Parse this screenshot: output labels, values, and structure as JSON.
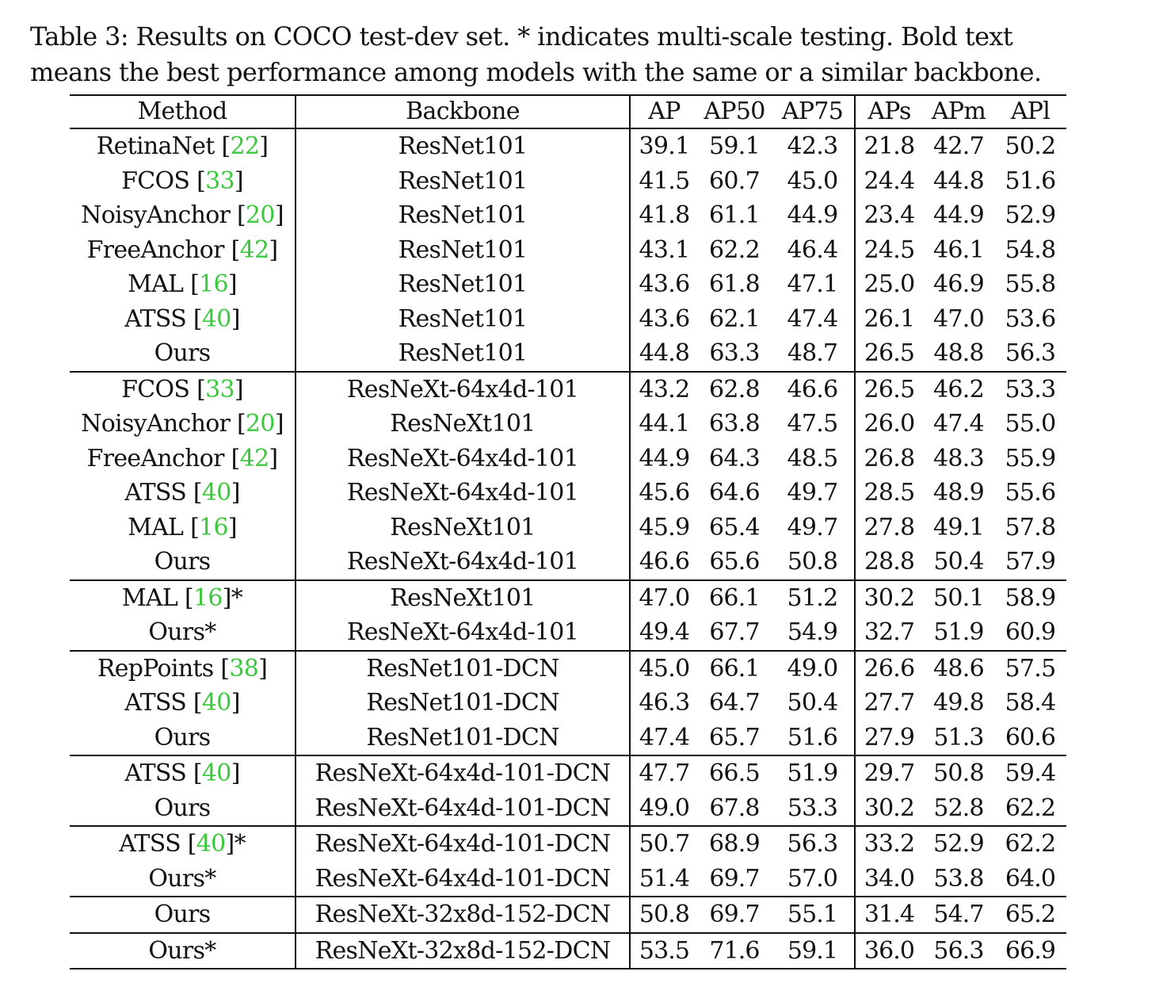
{
  "caption": {
    "line1": "Table 3: Results on COCO test-dev set. * indicates multi-scale testing. Bold text",
    "line2": "means the best performance among models with the same or a similar backbone."
  },
  "headers": [
    "Method",
    "Backbone",
    "AP",
    "AP50",
    "AP75",
    "APs",
    "APm",
    "APl"
  ],
  "groups": [
    {
      "rows": [
        {
          "method": "RetinaNet",
          "ref": "22",
          "star": "",
          "backbone": "ResNet101",
          "values": [
            "39.1",
            "59.1",
            "42.3",
            "21.8",
            "42.7",
            "50.2"
          ],
          "bold": [
            false,
            false,
            false,
            false,
            false,
            false
          ]
        },
        {
          "method": "FCOS",
          "ref": "33",
          "star": "",
          "backbone": "ResNet101",
          "values": [
            "41.5",
            "60.7",
            "45.0",
            "24.4",
            "44.8",
            "51.6"
          ],
          "bold": [
            false,
            false,
            false,
            false,
            false,
            false
          ]
        },
        {
          "method": "NoisyAnchor",
          "ref": "20",
          "star": "",
          "backbone": "ResNet101",
          "values": [
            "41.8",
            "61.1",
            "44.9",
            "23.4",
            "44.9",
            "52.9"
          ],
          "bold": [
            false,
            false,
            false,
            false,
            false,
            false
          ]
        },
        {
          "method": "FreeAnchor",
          "ref": "42",
          "star": "",
          "backbone": "ResNet101",
          "values": [
            "43.1",
            "62.2",
            "46.4",
            "24.5",
            "46.1",
            "54.8"
          ],
          "bold": [
            false,
            false,
            false,
            false,
            false,
            false
          ]
        },
        {
          "method": "MAL",
          "ref": "16",
          "star": "",
          "backbone": "ResNet101",
          "values": [
            "43.6",
            "61.8",
            "47.1",
            "25.0",
            "46.9",
            "55.8"
          ],
          "bold": [
            false,
            false,
            false,
            false,
            false,
            false
          ]
        },
        {
          "method": "ATSS",
          "ref": "40",
          "star": "",
          "backbone": "ResNet101",
          "values": [
            "43.6",
            "62.1",
            "47.4",
            "26.1",
            "47.0",
            "53.6"
          ],
          "bold": [
            false,
            false,
            false,
            false,
            false,
            false
          ]
        },
        {
          "method": "Ours",
          "ref": "",
          "star": "",
          "backbone": "ResNet101",
          "values": [
            "44.8",
            "63.3",
            "48.7",
            "26.5",
            "48.8",
            "56.3"
          ],
          "bold": [
            true,
            true,
            true,
            true,
            true,
            true
          ]
        }
      ]
    },
    {
      "rows": [
        {
          "method": "FCOS",
          "ref": "33",
          "star": "",
          "backbone": "ResNeXt-64x4d-101",
          "values": [
            "43.2",
            "62.8",
            "46.6",
            "26.5",
            "46.2",
            "53.3"
          ],
          "bold": [
            false,
            false,
            false,
            false,
            false,
            false
          ]
        },
        {
          "method": "NoisyAnchor",
          "ref": "20",
          "star": "",
          "backbone": "ResNeXt101",
          "values": [
            "44.1",
            "63.8",
            "47.5",
            "26.0",
            "47.4",
            "55.0"
          ],
          "bold": [
            false,
            false,
            false,
            false,
            false,
            false
          ]
        },
        {
          "method": "FreeAnchor",
          "ref": "42",
          "star": "",
          "backbone": "ResNeXt-64x4d-101",
          "values": [
            "44.9",
            "64.3",
            "48.5",
            "26.8",
            "48.3",
            "55.9"
          ],
          "bold": [
            false,
            false,
            false,
            false,
            false,
            false
          ]
        },
        {
          "method": "ATSS",
          "ref": "40",
          "star": "",
          "backbone": "ResNeXt-64x4d-101",
          "values": [
            "45.6",
            "64.6",
            "49.7",
            "28.5",
            "48.9",
            "55.6"
          ],
          "bold": [
            false,
            false,
            false,
            false,
            false,
            false
          ]
        },
        {
          "method": "MAL",
          "ref": "16",
          "star": "",
          "backbone": "ResNeXt101",
          "values": [
            "45.9",
            "65.4",
            "49.7",
            "27.8",
            "49.1",
            "57.8"
          ],
          "bold": [
            false,
            false,
            false,
            false,
            false,
            false
          ]
        },
        {
          "method": "Ours",
          "ref": "",
          "star": "",
          "backbone": "ResNeXt-64x4d-101",
          "values": [
            "46.6",
            "65.6",
            "50.8",
            "28.8",
            "50.4",
            "57.9"
          ],
          "bold": [
            true,
            true,
            true,
            true,
            true,
            true
          ]
        }
      ]
    },
    {
      "rows": [
        {
          "method": "MAL",
          "ref": "16",
          "star": "*",
          "backbone": "ResNeXt101",
          "values": [
            "47.0",
            "66.1",
            "51.2",
            "30.2",
            "50.1",
            "58.9"
          ],
          "bold": [
            false,
            false,
            false,
            false,
            false,
            false
          ]
        },
        {
          "method": "Ours",
          "ref": "",
          "star": "*",
          "backbone": "ResNeXt-64x4d-101",
          "values": [
            "49.4",
            "67.7",
            "54.9",
            "32.7",
            "51.9",
            "60.9"
          ],
          "bold": [
            true,
            true,
            true,
            true,
            true,
            true
          ]
        }
      ]
    },
    {
      "rows": [
        {
          "method": "RepPoints",
          "ref": "38",
          "star": "",
          "backbone": "ResNet101-DCN",
          "values": [
            "45.0",
            "66.1",
            "49.0",
            "26.6",
            "48.6",
            "57.5"
          ],
          "bold": [
            false,
            true,
            false,
            false,
            false,
            false
          ]
        },
        {
          "method": "ATSS",
          "ref": "40",
          "star": "",
          "backbone": "ResNet101-DCN",
          "values": [
            "46.3",
            "64.7",
            "50.4",
            "27.7",
            "49.8",
            "58.4"
          ],
          "bold": [
            false,
            false,
            false,
            false,
            false,
            false
          ]
        },
        {
          "method": "Ours",
          "ref": "",
          "star": "",
          "backbone": "ResNet101-DCN",
          "values": [
            "47.4",
            "65.7",
            "51.6",
            "27.9",
            "51.3",
            "60.6"
          ],
          "bold": [
            true,
            false,
            true,
            true,
            true,
            true
          ]
        }
      ]
    },
    {
      "rows": [
        {
          "method": "ATSS",
          "ref": "40",
          "star": "",
          "backbone": "ResNeXt-64x4d-101-DCN",
          "values": [
            "47.7",
            "66.5",
            "51.9",
            "29.7",
            "50.8",
            "59.4"
          ],
          "bold": [
            false,
            false,
            false,
            false,
            false,
            false
          ]
        },
        {
          "method": "Ours",
          "ref": "",
          "star": "",
          "backbone": "ResNeXt-64x4d-101-DCN",
          "values": [
            "49.0",
            "67.8",
            "53.3",
            "30.2",
            "52.8",
            "62.2"
          ],
          "bold": [
            true,
            true,
            true,
            true,
            true,
            true
          ]
        }
      ]
    },
    {
      "rows": [
        {
          "method": "ATSS",
          "ref": "40",
          "star": "*",
          "backbone": "ResNeXt-64x4d-101-DCN",
          "values": [
            "50.7",
            "68.9",
            "56.3",
            "33.2",
            "52.9",
            "62.2"
          ],
          "bold": [
            false,
            false,
            false,
            false,
            false,
            false
          ]
        },
        {
          "method": "Ours",
          "ref": "",
          "star": "*",
          "backbone": "ResNeXt-64x4d-101-DCN",
          "values": [
            "51.4",
            "69.7",
            "57.0",
            "34.0",
            "53.8",
            "64.0"
          ],
          "bold": [
            true,
            true,
            true,
            true,
            true,
            true
          ]
        }
      ]
    },
    {
      "rows": [
        {
          "method": "Ours",
          "ref": "",
          "star": "",
          "backbone": "ResNeXt-32x8d-152-DCN",
          "values": [
            "50.8",
            "69.7",
            "55.1",
            "31.4",
            "54.7",
            "65.2"
          ],
          "bold": [
            true,
            true,
            true,
            true,
            true,
            true
          ]
        }
      ]
    },
    {
      "rows": [
        {
          "method": "Ours",
          "ref": "",
          "star": "*",
          "backbone": "ResNeXt-32x8d-152-DCN",
          "values": [
            "53.5",
            "71.6",
            "59.1",
            "36.0",
            "56.3",
            "66.9"
          ],
          "bold": [
            true,
            true,
            true,
            true,
            true,
            true
          ]
        }
      ]
    }
  ]
}
